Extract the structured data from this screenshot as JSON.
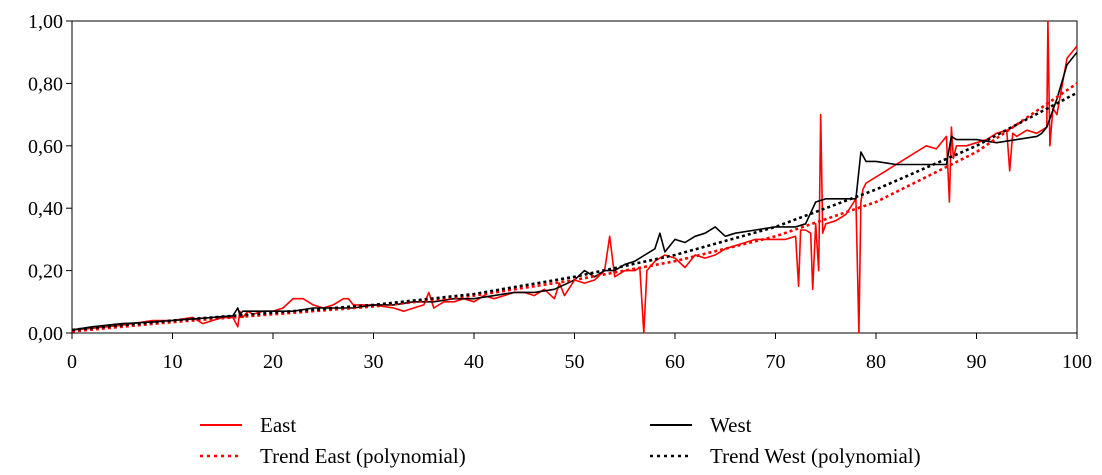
{
  "chart_data": {
    "type": "line",
    "title": "",
    "xlabel": "",
    "ylabel": "",
    "xlim": [
      0,
      100
    ],
    "ylim": [
      0,
      1
    ],
    "x_ticks": [
      0,
      10,
      20,
      30,
      40,
      50,
      60,
      70,
      80,
      90,
      100
    ],
    "x_tick_labels": [
      "0",
      "10",
      "20",
      "30",
      "40",
      "50",
      "60",
      "70",
      "80",
      "90",
      "100"
    ],
    "y_ticks": [
      0,
      0.2,
      0.4,
      0.6,
      0.8,
      1.0
    ],
    "y_tick_labels": [
      "0,00",
      "0,20",
      "0,40",
      "0,60",
      "0,80",
      "1,00"
    ],
    "grid": false,
    "legend_position": "bottom",
    "series": [
      {
        "name": "East",
        "color": "#ff0000",
        "style": "solid",
        "x": [
          0,
          2,
          5,
          8,
          10,
          12,
          13,
          14,
          15,
          16,
          16.5,
          16.7,
          17,
          17.5,
          18,
          19,
          20,
          21,
          22,
          23,
          24,
          25,
          26,
          27,
          27.5,
          28,
          30,
          32,
          33,
          34,
          35,
          35.5,
          36,
          37,
          38,
          39,
          40,
          41,
          42,
          43,
          44,
          45,
          46,
          47,
          48,
          48.5,
          49,
          50,
          51,
          52,
          53,
          53.5,
          54,
          55,
          56,
          56.5,
          56.9,
          57.2,
          58,
          59,
          60,
          61,
          62,
          63,
          64,
          65,
          66,
          67,
          68,
          69,
          70,
          71,
          72,
          72.3,
          72.5,
          73,
          73.5,
          73.7,
          74,
          74.3,
          74.5,
          74.7,
          75,
          76,
          77,
          78,
          78.3,
          78.5,
          78.7,
          79,
          80,
          81,
          82,
          83,
          84,
          85,
          86,
          87,
          87.3,
          87.5,
          87.7,
          88,
          89,
          90,
          91,
          92,
          93,
          93.3,
          93.6,
          94,
          95,
          96,
          97,
          97.1,
          97.3,
          97.6,
          98,
          99,
          100
        ],
        "y": [
          0.01,
          0.015,
          0.025,
          0.04,
          0.04,
          0.05,
          0.03,
          0.04,
          0.05,
          0.05,
          0.02,
          0.07,
          0.05,
          0.07,
          0.06,
          0.07,
          0.07,
          0.08,
          0.11,
          0.11,
          0.09,
          0.08,
          0.09,
          0.11,
          0.11,
          0.09,
          0.09,
          0.08,
          0.07,
          0.08,
          0.09,
          0.13,
          0.08,
          0.1,
          0.1,
          0.11,
          0.1,
          0.12,
          0.11,
          0.12,
          0.13,
          0.13,
          0.12,
          0.14,
          0.11,
          0.16,
          0.12,
          0.17,
          0.16,
          0.17,
          0.2,
          0.31,
          0.18,
          0.2,
          0.2,
          0.21,
          0.0,
          0.2,
          0.23,
          0.25,
          0.24,
          0.21,
          0.25,
          0.24,
          0.25,
          0.27,
          0.28,
          0.29,
          0.3,
          0.3,
          0.3,
          0.3,
          0.31,
          0.15,
          0.33,
          0.33,
          0.32,
          0.14,
          0.35,
          0.2,
          0.7,
          0.32,
          0.35,
          0.36,
          0.38,
          0.43,
          0.0,
          0.42,
          0.46,
          0.48,
          0.5,
          0.52,
          0.54,
          0.56,
          0.58,
          0.6,
          0.59,
          0.63,
          0.42,
          0.66,
          0.56,
          0.6,
          0.6,
          0.61,
          0.62,
          0.64,
          0.65,
          0.52,
          0.64,
          0.63,
          0.65,
          0.64,
          0.66,
          1.0,
          0.6,
          0.72,
          0.7,
          0.88,
          0.92
        ]
      },
      {
        "name": "West",
        "color": "#000000",
        "style": "solid",
        "x": [
          0,
          2,
          5,
          8,
          10,
          12,
          14,
          16,
          16.5,
          16.7,
          17,
          18,
          20,
          22,
          24,
          26,
          28,
          30,
          32,
          34,
          36,
          38,
          40,
          42,
          44,
          46,
          48,
          50,
          51,
          52,
          53,
          54,
          55,
          56,
          57,
          58,
          58.5,
          59,
          60,
          61,
          62,
          63,
          64,
          65,
          66,
          68,
          70,
          72,
          73,
          74,
          75,
          76,
          77,
          78,
          78.5,
          79,
          80,
          82,
          84,
          86,
          87,
          87.5,
          88,
          90,
          92,
          94,
          96,
          96.5,
          97,
          98,
          99,
          100
        ],
        "y": [
          0.01,
          0.02,
          0.03,
          0.035,
          0.04,
          0.045,
          0.05,
          0.055,
          0.08,
          0.06,
          0.07,
          0.07,
          0.07,
          0.07,
          0.08,
          0.08,
          0.08,
          0.09,
          0.09,
          0.1,
          0.1,
          0.11,
          0.11,
          0.12,
          0.13,
          0.13,
          0.14,
          0.17,
          0.2,
          0.18,
          0.2,
          0.2,
          0.22,
          0.23,
          0.25,
          0.27,
          0.32,
          0.26,
          0.3,
          0.29,
          0.31,
          0.32,
          0.34,
          0.31,
          0.32,
          0.33,
          0.34,
          0.34,
          0.35,
          0.42,
          0.43,
          0.43,
          0.43,
          0.43,
          0.58,
          0.55,
          0.55,
          0.54,
          0.54,
          0.54,
          0.54,
          0.63,
          0.62,
          0.62,
          0.61,
          0.62,
          0.63,
          0.64,
          0.66,
          0.75,
          0.86,
          0.9
        ]
      },
      {
        "name": "Trend East (polynomial)",
        "color": "#ff0000",
        "style": "dotted",
        "x": [
          0,
          10,
          20,
          30,
          40,
          50,
          60,
          70,
          80,
          90,
          100
        ],
        "y": [
          0.005,
          0.035,
          0.06,
          0.085,
          0.12,
          0.17,
          0.23,
          0.31,
          0.42,
          0.58,
          0.8
        ]
      },
      {
        "name": "Trend West (polynomial)",
        "color": "#000000",
        "style": "dotted",
        "x": [
          0,
          10,
          20,
          30,
          40,
          50,
          60,
          70,
          80,
          90,
          100
        ],
        "y": [
          0.01,
          0.04,
          0.065,
          0.09,
          0.125,
          0.18,
          0.25,
          0.34,
          0.46,
          0.6,
          0.77
        ]
      }
    ]
  }
}
